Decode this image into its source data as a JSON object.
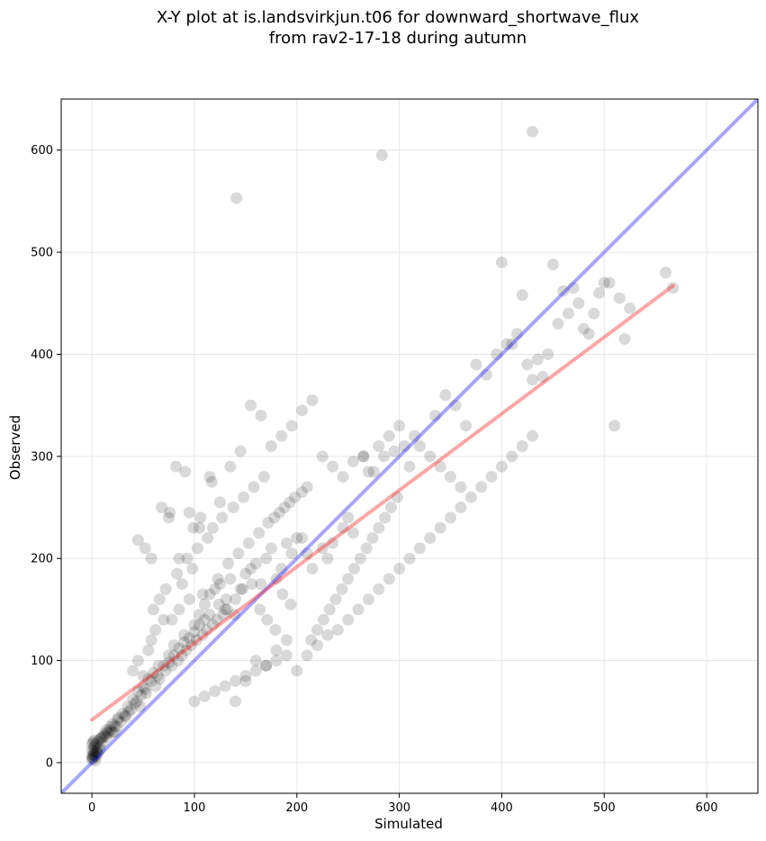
{
  "chart_data": {
    "type": "scatter",
    "title": "X-Y plot at is.landsvirkjun.t06 for downward_shortwave_flux",
    "subtitle": "from rav2-17-18 during autumn",
    "xlabel": "Simulated",
    "ylabel": "Observed",
    "xlim": [
      -30,
      650
    ],
    "ylim": [
      -30,
      650
    ],
    "xticks": [
      0,
      100,
      200,
      300,
      400,
      500,
      600
    ],
    "yticks": [
      0,
      100,
      200,
      300,
      400,
      500,
      600
    ],
    "grid": true,
    "legend": "none",
    "colors": {
      "points": "#000000",
      "one_to_one_line": "#0000ff",
      "fit_line": "#ff0000",
      "grid": "#e6e6e6"
    },
    "one_to_one_line": {
      "x": [
        -30,
        650
      ],
      "y": [
        -30,
        650
      ]
    },
    "fit_line": {
      "x": [
        0,
        567
      ],
      "y": [
        42,
        467
      ]
    },
    "series": [
      {
        "x": [
          0,
          1,
          2,
          3,
          4,
          5,
          0,
          2,
          1,
          3,
          4,
          6,
          8,
          0,
          1,
          2,
          5,
          7,
          10,
          12,
          15,
          3,
          6,
          9,
          1,
          0,
          2,
          4,
          8,
          14,
          18,
          20,
          22,
          25,
          12,
          16,
          10,
          14,
          18,
          22,
          26,
          30,
          35,
          40,
          45,
          50,
          55,
          60,
          28,
          32,
          38,
          42,
          48,
          52,
          58,
          64,
          70,
          75,
          80,
          85,
          90,
          95,
          100,
          105,
          110,
          115,
          20,
          24,
          33,
          36,
          44,
          47,
          53,
          62,
          66,
          72,
          78,
          84,
          88,
          92,
          97,
          102,
          108,
          112,
          118,
          122,
          128,
          132,
          40,
          45,
          50,
          55,
          58,
          62,
          65,
          70,
          75,
          80,
          85,
          90,
          95,
          100,
          105,
          110,
          115,
          120,
          125,
          130,
          135,
          140,
          145,
          150,
          155,
          160,
          165,
          170,
          175,
          180,
          185,
          190,
          195,
          200,
          60,
          66,
          72,
          78,
          83,
          88,
          93,
          98,
          103,
          108,
          113,
          118,
          123,
          127,
          133,
          138,
          143,
          148,
          153,
          158,
          163,
          168,
          172,
          178,
          183,
          188,
          193,
          198,
          205,
          210,
          214,
          220,
          226,
          232,
          238,
          244,
          250,
          256,
          262,
          268,
          274,
          280,
          286,
          292,
          298,
          75,
          85,
          95,
          105,
          115,
          125,
          135,
          145,
          155,
          165,
          175,
          185,
          195,
          205,
          215,
          225,
          235,
          245,
          255,
          265,
          275,
          285,
          295,
          305,
          315,
          140,
          150,
          160,
          170,
          180,
          190,
          200,
          210,
          220,
          230,
          240,
          250,
          260,
          270,
          280,
          290,
          300,
          310,
          320,
          330,
          340,
          350,
          360,
          370,
          380,
          390,
          400,
          410,
          420,
          430,
          335,
          345,
          355,
          365,
          375,
          385,
          395,
          405,
          415,
          425,
          435,
          445,
          455,
          465,
          475,
          485,
          495,
          505,
          515,
          525,
          560,
          567,
          520,
          510,
          500,
          490,
          480,
          470,
          460,
          450,
          440,
          430,
          420,
          410,
          400,
          430,
          283,
          141,
          265,
          270,
          280,
          290,
          300,
          310,
          320,
          330,
          340,
          350,
          360,
          245,
          250,
          255,
          225,
          230,
          235,
          210,
          215,
          205,
          100,
          110,
          120,
          130,
          140,
          150,
          160,
          170,
          180,
          190,
          45,
          52,
          58,
          68,
          76,
          82,
          91,
          99,
          106,
          117,
          124,
          131,
          139,
          147,
          156,
          164,
          171,
          179,
          186,
          194
        ],
        "y": [
          3,
          5,
          8,
          2,
          6,
          10,
          12,
          15,
          4,
          7,
          11,
          9,
          13,
          18,
          20,
          22,
          14,
          16,
          25,
          28,
          30,
          17,
          21,
          24,
          8,
          6,
          11,
          19,
          23,
          32,
          35,
          38,
          30,
          42,
          26,
          29,
          20,
          25,
          32,
          36,
          44,
          48,
          55,
          62,
          70,
          74,
          82,
          88,
          40,
          46,
          52,
          58,
          66,
          72,
          80,
          85,
          95,
          98,
          105,
          112,
          118,
          122,
          128,
          135,
          140,
          145,
          30,
          35,
          45,
          50,
          60,
          55,
          68,
          75,
          82,
          90,
          95,
          100,
          105,
          110,
          115,
          120,
          125,
          130,
          135,
          140,
          145,
          150,
          90,
          100,
          85,
          110,
          120,
          130,
          95,
          140,
          105,
          115,
          150,
          125,
          160,
          135,
          145,
          155,
          165,
          170,
          175,
          150,
          180,
          160,
          170,
          185,
          190,
          195,
          175,
          200,
          210,
          180,
          190,
          215,
          205,
          220,
          150,
          160,
          170,
          140,
          185,
          175,
          200,
          190,
          210,
          165,
          220,
          230,
          180,
          240,
          195,
          250,
          205,
          260,
          215,
          270,
          225,
          280,
          235,
          240,
          245,
          250,
          255,
          260,
          265,
          270,
          120,
          130,
          140,
          150,
          160,
          170,
          180,
          190,
          200,
          210,
          220,
          230,
          240,
          250,
          260,
          240,
          200,
          245,
          230,
          280,
          255,
          290,
          305,
          350,
          340,
          310,
          320,
          330,
          345,
          355,
          300,
          290,
          280,
          295,
          300,
          285,
          300,
          305,
          310,
          320,
          60,
          80,
          100,
          95,
          110,
          120,
          90,
          105,
          115,
          125,
          130,
          140,
          150,
          160,
          170,
          180,
          190,
          200,
          210,
          220,
          230,
          240,
          250,
          260,
          270,
          280,
          290,
          300,
          310,
          320,
          340,
          360,
          350,
          330,
          390,
          380,
          400,
          410,
          420,
          390,
          395,
          400,
          430,
          440,
          450,
          420,
          460,
          470,
          455,
          445,
          480,
          465,
          415,
          330,
          470,
          440,
          425,
          465,
          462,
          488,
          378,
          618,
          458,
          410,
          490,
          375,
          595,
          553,
          300,
          285,
          310,
          320,
          330,
          290,
          310,
          300,
          290,
          280,
          270,
          230,
          240,
          225,
          210,
          200,
          215,
          205,
          190,
          220,
          60,
          65,
          70,
          75,
          80,
          85,
          90,
          95,
          100,
          105,
          218,
          210,
          200,
          250,
          245,
          290,
          285,
          230,
          240,
          275,
          155,
          160,
          145,
          170,
          175,
          150,
          140,
          130,
          165,
          155
        ],
        "point_color": "#000000",
        "point_alpha": 0.15
      }
    ]
  }
}
